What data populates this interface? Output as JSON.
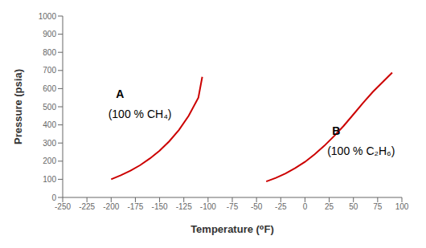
{
  "chart_data": {
    "type": "line",
    "x_label": "Temperature (⁰F)",
    "y_label": "Pressure (psia)",
    "color": "#CC0000",
    "series": [
      {
        "x": [
          -200,
          -190,
          -180,
          -170,
          -160,
          -150,
          -140,
          -130,
          -120,
          -110,
          -106
        ],
        "values": [
          100,
          122,
          148,
          178,
          215,
          258,
          310,
          372,
          450,
          550,
          665
        ]
      },
      {
        "x": [
          -40,
          -30,
          -20,
          -10,
          0,
          10,
          20,
          30,
          40,
          50,
          60,
          70,
          80,
          90
        ],
        "values": [
          88,
          108,
          132,
          162,
          196,
          238,
          285,
          338,
          395,
          458,
          522,
          582,
          635,
          688
        ]
      }
    ],
    "xlim": [
      -250,
      100
    ],
    "ylim": [
      0,
      1000
    ],
    "xticks": [
      -250,
      -225,
      -200,
      -175,
      -150,
      -125,
      -100,
      -75,
      -50,
      -25,
      0,
      25,
      50,
      75,
      100
    ],
    "yticks": [
      0,
      100,
      200,
      300,
      400,
      500,
      600,
      700,
      800,
      900,
      1000
    ],
    "annotations": [
      {
        "text": "A",
        "x": -195,
        "y": 535
      },
      {
        "text": "(100 % CH₄)",
        "x": -203,
        "y": 485
      },
      {
        "text": "B",
        "x": 28,
        "y": 330
      },
      {
        "text": "(100 % C₂H₆)",
        "x": 23,
        "y": 280
      }
    ],
    "grid": false
  }
}
